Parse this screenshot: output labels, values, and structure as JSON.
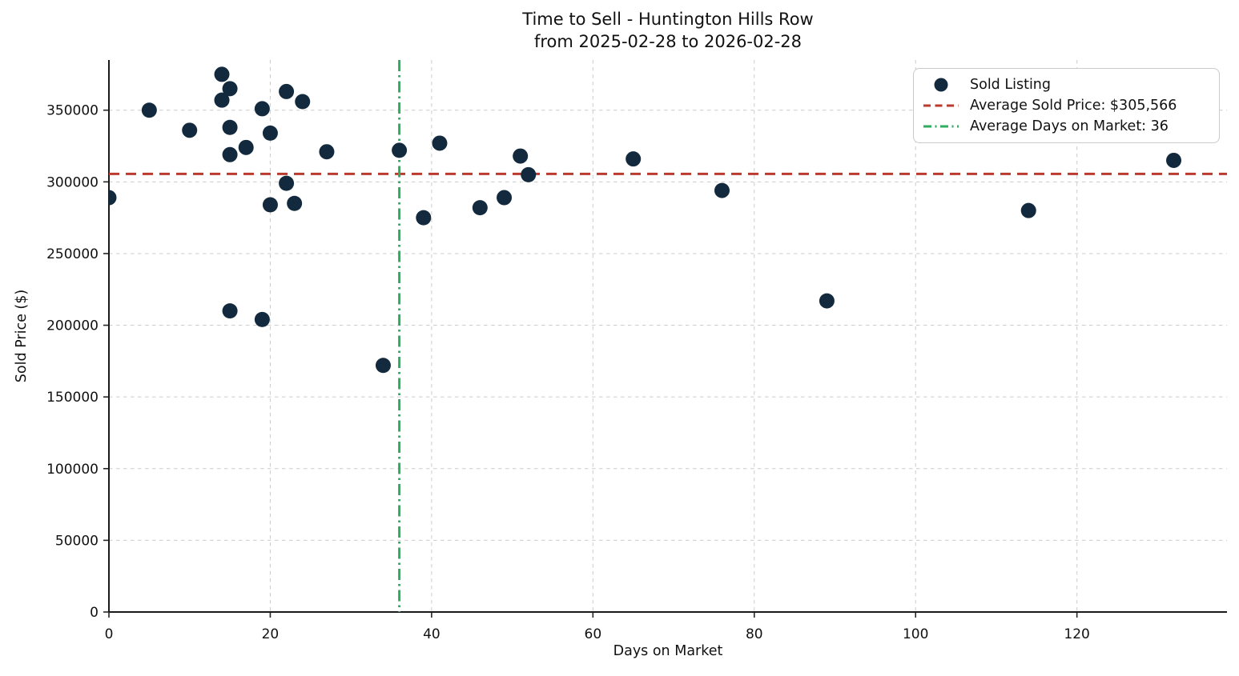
{
  "chart_data": {
    "type": "scatter",
    "title": "Time to Sell - Huntington Hills Row",
    "subtitle": "from 2025-02-28 to 2026-02-28",
    "xlabel": "Days on Market",
    "ylabel": "Sold Price ($)",
    "xlim": [
      0,
      138.6
    ],
    "ylim": [
      0,
      385000
    ],
    "xticks": [
      0,
      20,
      40,
      60,
      80,
      100,
      120
    ],
    "yticks": [
      0,
      50000,
      100000,
      150000,
      200000,
      250000,
      300000,
      350000
    ],
    "grid": true,
    "legend_position": "upper right",
    "series": [
      {
        "name": "Sold Listing",
        "type": "scatter",
        "marker": "circle",
        "color": "#132a3e",
        "points": [
          [
            0,
            289000
          ],
          [
            5,
            350000
          ],
          [
            10,
            336000
          ],
          [
            14,
            375000
          ],
          [
            14,
            357000
          ],
          [
            15,
            365000
          ],
          [
            15,
            338000
          ],
          [
            15,
            319000
          ],
          [
            15,
            210000
          ],
          [
            17,
            324000
          ],
          [
            19,
            351000
          ],
          [
            19,
            204000
          ],
          [
            20,
            334000
          ],
          [
            20,
            284000
          ],
          [
            22,
            363000
          ],
          [
            22,
            299000
          ],
          [
            23,
            285000
          ],
          [
            24,
            356000
          ],
          [
            27,
            321000
          ],
          [
            34,
            172000
          ],
          [
            36,
            322000
          ],
          [
            39,
            275000
          ],
          [
            41,
            327000
          ],
          [
            46,
            282000
          ],
          [
            49,
            289000
          ],
          [
            51,
            318000
          ],
          [
            52,
            305000
          ],
          [
            65,
            316000
          ],
          [
            76,
            294000
          ],
          [
            89,
            217000
          ],
          [
            114,
            280000
          ],
          [
            132,
            315000
          ]
        ]
      },
      {
        "name": "Average Sold Price: $305,566",
        "type": "hline",
        "value": 305566,
        "color": "#bb3a2e",
        "style": "dashed"
      },
      {
        "name": "Average Days on Market: 36",
        "type": "vline",
        "value": 36,
        "color": "#2eac5f",
        "style": "dashdot"
      }
    ]
  },
  "legend": {
    "markers": [
      "scatter-dot",
      "dashed-line",
      "dashdot-line"
    ]
  },
  "colors": {
    "background": "#ffffff",
    "scatter_point": "#132a3e",
    "avg_price_line": "#bb3a2e",
    "avg_days_line": "#2eac5f",
    "gridline": "#cccccc",
    "axis": "#1a1a1a",
    "text": "#111111",
    "legend_border": "#cbcbcb"
  }
}
